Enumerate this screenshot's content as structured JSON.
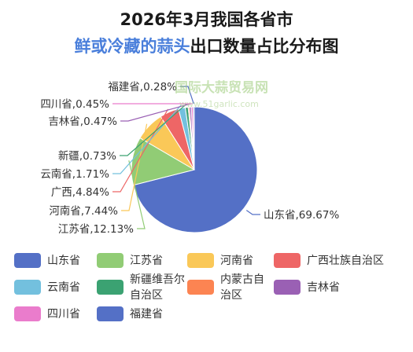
{
  "title": {
    "line1": "2026年3月我国各省市",
    "line2_accent": "鲜或冷藏的蒜头",
    "line2_rest": "出口数量占比分布图"
  },
  "watermark": {
    "name": "国际大蒜贸易网",
    "url": "www.51garlic.com"
  },
  "chart_data": {
    "type": "pie",
    "categories": [
      "山东省",
      "江苏省",
      "河南省",
      "广西壮族自治区",
      "云南省",
      "新疆维吾尔自治区",
      "内蒙古自治区",
      "吉林省",
      "四川省",
      "福建省"
    ],
    "values": [
      69.67,
      12.13,
      7.44,
      4.84,
      1.71,
      0.73,
      0.33,
      0.47,
      0.45,
      0.28
    ],
    "colors": [
      "#5470c6",
      "#91cc75",
      "#fac858",
      "#ee6666",
      "#73c0de",
      "#3ba272",
      "#fc8452",
      "#9a60b4",
      "#ea7ccc",
      "#5470c6"
    ],
    "labels": [
      {
        "text": "山东省,69.67%"
      },
      {
        "text": "江苏省,12.13%"
      },
      {
        "text": "河南省,7.44%"
      },
      {
        "text": "广西,4.84%"
      },
      {
        "text": "云南省,1.71%"
      },
      {
        "text": "新疆,0.73%"
      },
      {
        "text": ""
      },
      {
        "text": "吉林省,0.47%"
      },
      {
        "text": "四川省,0.45%"
      },
      {
        "text": "福建省,0.28%"
      }
    ],
    "legend": [
      "山东省",
      "江苏省",
      "河南省",
      "广西壮族自治区",
      "云南省",
      "新疆维吾尔自治区",
      "内蒙古自治区",
      "吉林省",
      "四川省",
      "福建省"
    ]
  }
}
